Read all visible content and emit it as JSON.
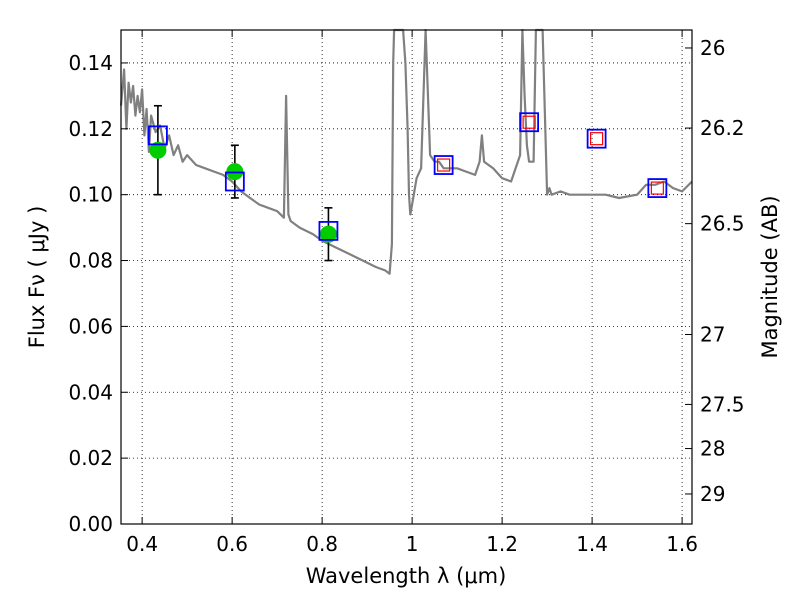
{
  "chart_data": {
    "type": "line",
    "xlabel": "Wavelength  λ (μm)",
    "ylabel": "Flux  Fν  ( μJy )",
    "y2label": "Magnitude (AB)",
    "xlim": [
      0.353,
      1.622
    ],
    "ylim": [
      0.0,
      0.15
    ],
    "grid": true,
    "x_ticks": [
      0.4,
      0.6,
      0.8,
      1.0,
      1.2,
      1.4,
      1.6
    ],
    "x_tick_labels": [
      "0.4",
      "0.6",
      "0.8",
      "1",
      "1.2",
      "1.4",
      "1.6"
    ],
    "y_ticks": [
      0.0,
      0.02,
      0.04,
      0.06,
      0.08,
      0.1,
      0.12,
      0.14
    ],
    "y_tick_labels": [
      "0.00",
      "0.02",
      "0.04",
      "0.06",
      "0.08",
      "0.10",
      "0.12",
      "0.14"
    ],
    "mag_ticks": [
      {
        "mag": 26,
        "label": "26"
      },
      {
        "mag": 26.2,
        "label": "26.2"
      },
      {
        "mag": 26.5,
        "label": "26.5"
      },
      {
        "mag": 27,
        "label": "27"
      },
      {
        "mag": 27.5,
        "label": "27.5"
      },
      {
        "mag": 28,
        "label": "28"
      },
      {
        "mag": 29,
        "label": "29"
      }
    ],
    "series": [
      {
        "name": "template spectrum",
        "kind": "line",
        "color": "#808080",
        "x": [
          0.353,
          0.36,
          0.365,
          0.37,
          0.375,
          0.38,
          0.385,
          0.39,
          0.395,
          0.4,
          0.405,
          0.41,
          0.415,
          0.42,
          0.43,
          0.44,
          0.45,
          0.46,
          0.47,
          0.48,
          0.49,
          0.5,
          0.52,
          0.54,
          0.56,
          0.58,
          0.6,
          0.62,
          0.64,
          0.66,
          0.68,
          0.7,
          0.715,
          0.72,
          0.725,
          0.73,
          0.75,
          0.78,
          0.8,
          0.83,
          0.86,
          0.89,
          0.92,
          0.94,
          0.95,
          0.955,
          0.958,
          0.96,
          0.965,
          0.97,
          0.98,
          0.985,
          0.99,
          0.993,
          0.996,
          1.0,
          1.01,
          1.02,
          1.03,
          1.04,
          1.05,
          1.06,
          1.07,
          1.08,
          1.1,
          1.12,
          1.14,
          1.15,
          1.155,
          1.16,
          1.18,
          1.2,
          1.22,
          1.24,
          1.245,
          1.25,
          1.255,
          1.26,
          1.27,
          1.275,
          1.28,
          1.285,
          1.29,
          1.3,
          1.305,
          1.31,
          1.33,
          1.35,
          1.38,
          1.4,
          1.43,
          1.46,
          1.5,
          1.52,
          1.54,
          1.56,
          1.58,
          1.6,
          1.622
        ],
        "y": [
          0.127,
          0.138,
          0.12,
          0.134,
          0.128,
          0.133,
          0.124,
          0.13,
          0.125,
          0.132,
          0.118,
          0.126,
          0.113,
          0.124,
          0.119,
          0.121,
          0.114,
          0.118,
          0.112,
          0.115,
          0.11,
          0.112,
          0.109,
          0.108,
          0.107,
          0.106,
          0.104,
          0.101,
          0.099,
          0.097,
          0.096,
          0.095,
          0.093,
          0.13,
          0.094,
          0.092,
          0.09,
          0.088,
          0.086,
          0.084,
          0.082,
          0.08,
          0.078,
          0.077,
          0.076,
          0.085,
          0.14,
          0.15,
          0.15,
          0.15,
          0.15,
          0.14,
          0.12,
          0.1,
          0.094,
          0.097,
          0.105,
          0.108,
          0.15,
          0.112,
          0.11,
          0.11,
          0.108,
          0.108,
          0.108,
          0.107,
          0.106,
          0.11,
          0.118,
          0.11,
          0.108,
          0.105,
          0.104,
          0.112,
          0.15,
          0.13,
          0.115,
          0.11,
          0.11,
          0.15,
          0.15,
          0.15,
          0.15,
          0.1,
          0.102,
          0.1,
          0.101,
          0.1,
          0.1,
          0.1,
          0.1,
          0.099,
          0.1,
          0.103,
          0.103,
          0.104,
          0.102,
          0.101,
          0.104
        ]
      },
      {
        "name": "observed photometry",
        "kind": "points",
        "color": "#00cc00",
        "points": [
          {
            "x": 0.435,
            "y": 0.1135,
            "yerr": 0.0135
          },
          {
            "x": 0.606,
            "y": 0.107,
            "yerr": 0.008
          },
          {
            "x": 0.814,
            "y": 0.088,
            "yerr": 0.008
          }
        ]
      },
      {
        "name": "model fluxes (blue squares)",
        "kind": "squares",
        "color": "#0000ff",
        "points": [
          {
            "x": 0.435,
            "y": 0.118
          },
          {
            "x": 0.606,
            "y": 0.104
          },
          {
            "x": 0.814,
            "y": 0.089
          },
          {
            "x": 1.07,
            "y": 0.109
          },
          {
            "x": 1.26,
            "y": 0.122
          },
          {
            "x": 1.41,
            "y": 0.117
          },
          {
            "x": 1.545,
            "y": 0.102
          }
        ]
      },
      {
        "name": "model fluxes (red squares)",
        "kind": "squares",
        "color": "#ff0000",
        "points": [
          {
            "x": 1.07,
            "y": 0.109
          },
          {
            "x": 1.26,
            "y": 0.122
          },
          {
            "x": 1.41,
            "y": 0.117
          },
          {
            "x": 1.545,
            "y": 0.102
          }
        ]
      }
    ]
  }
}
